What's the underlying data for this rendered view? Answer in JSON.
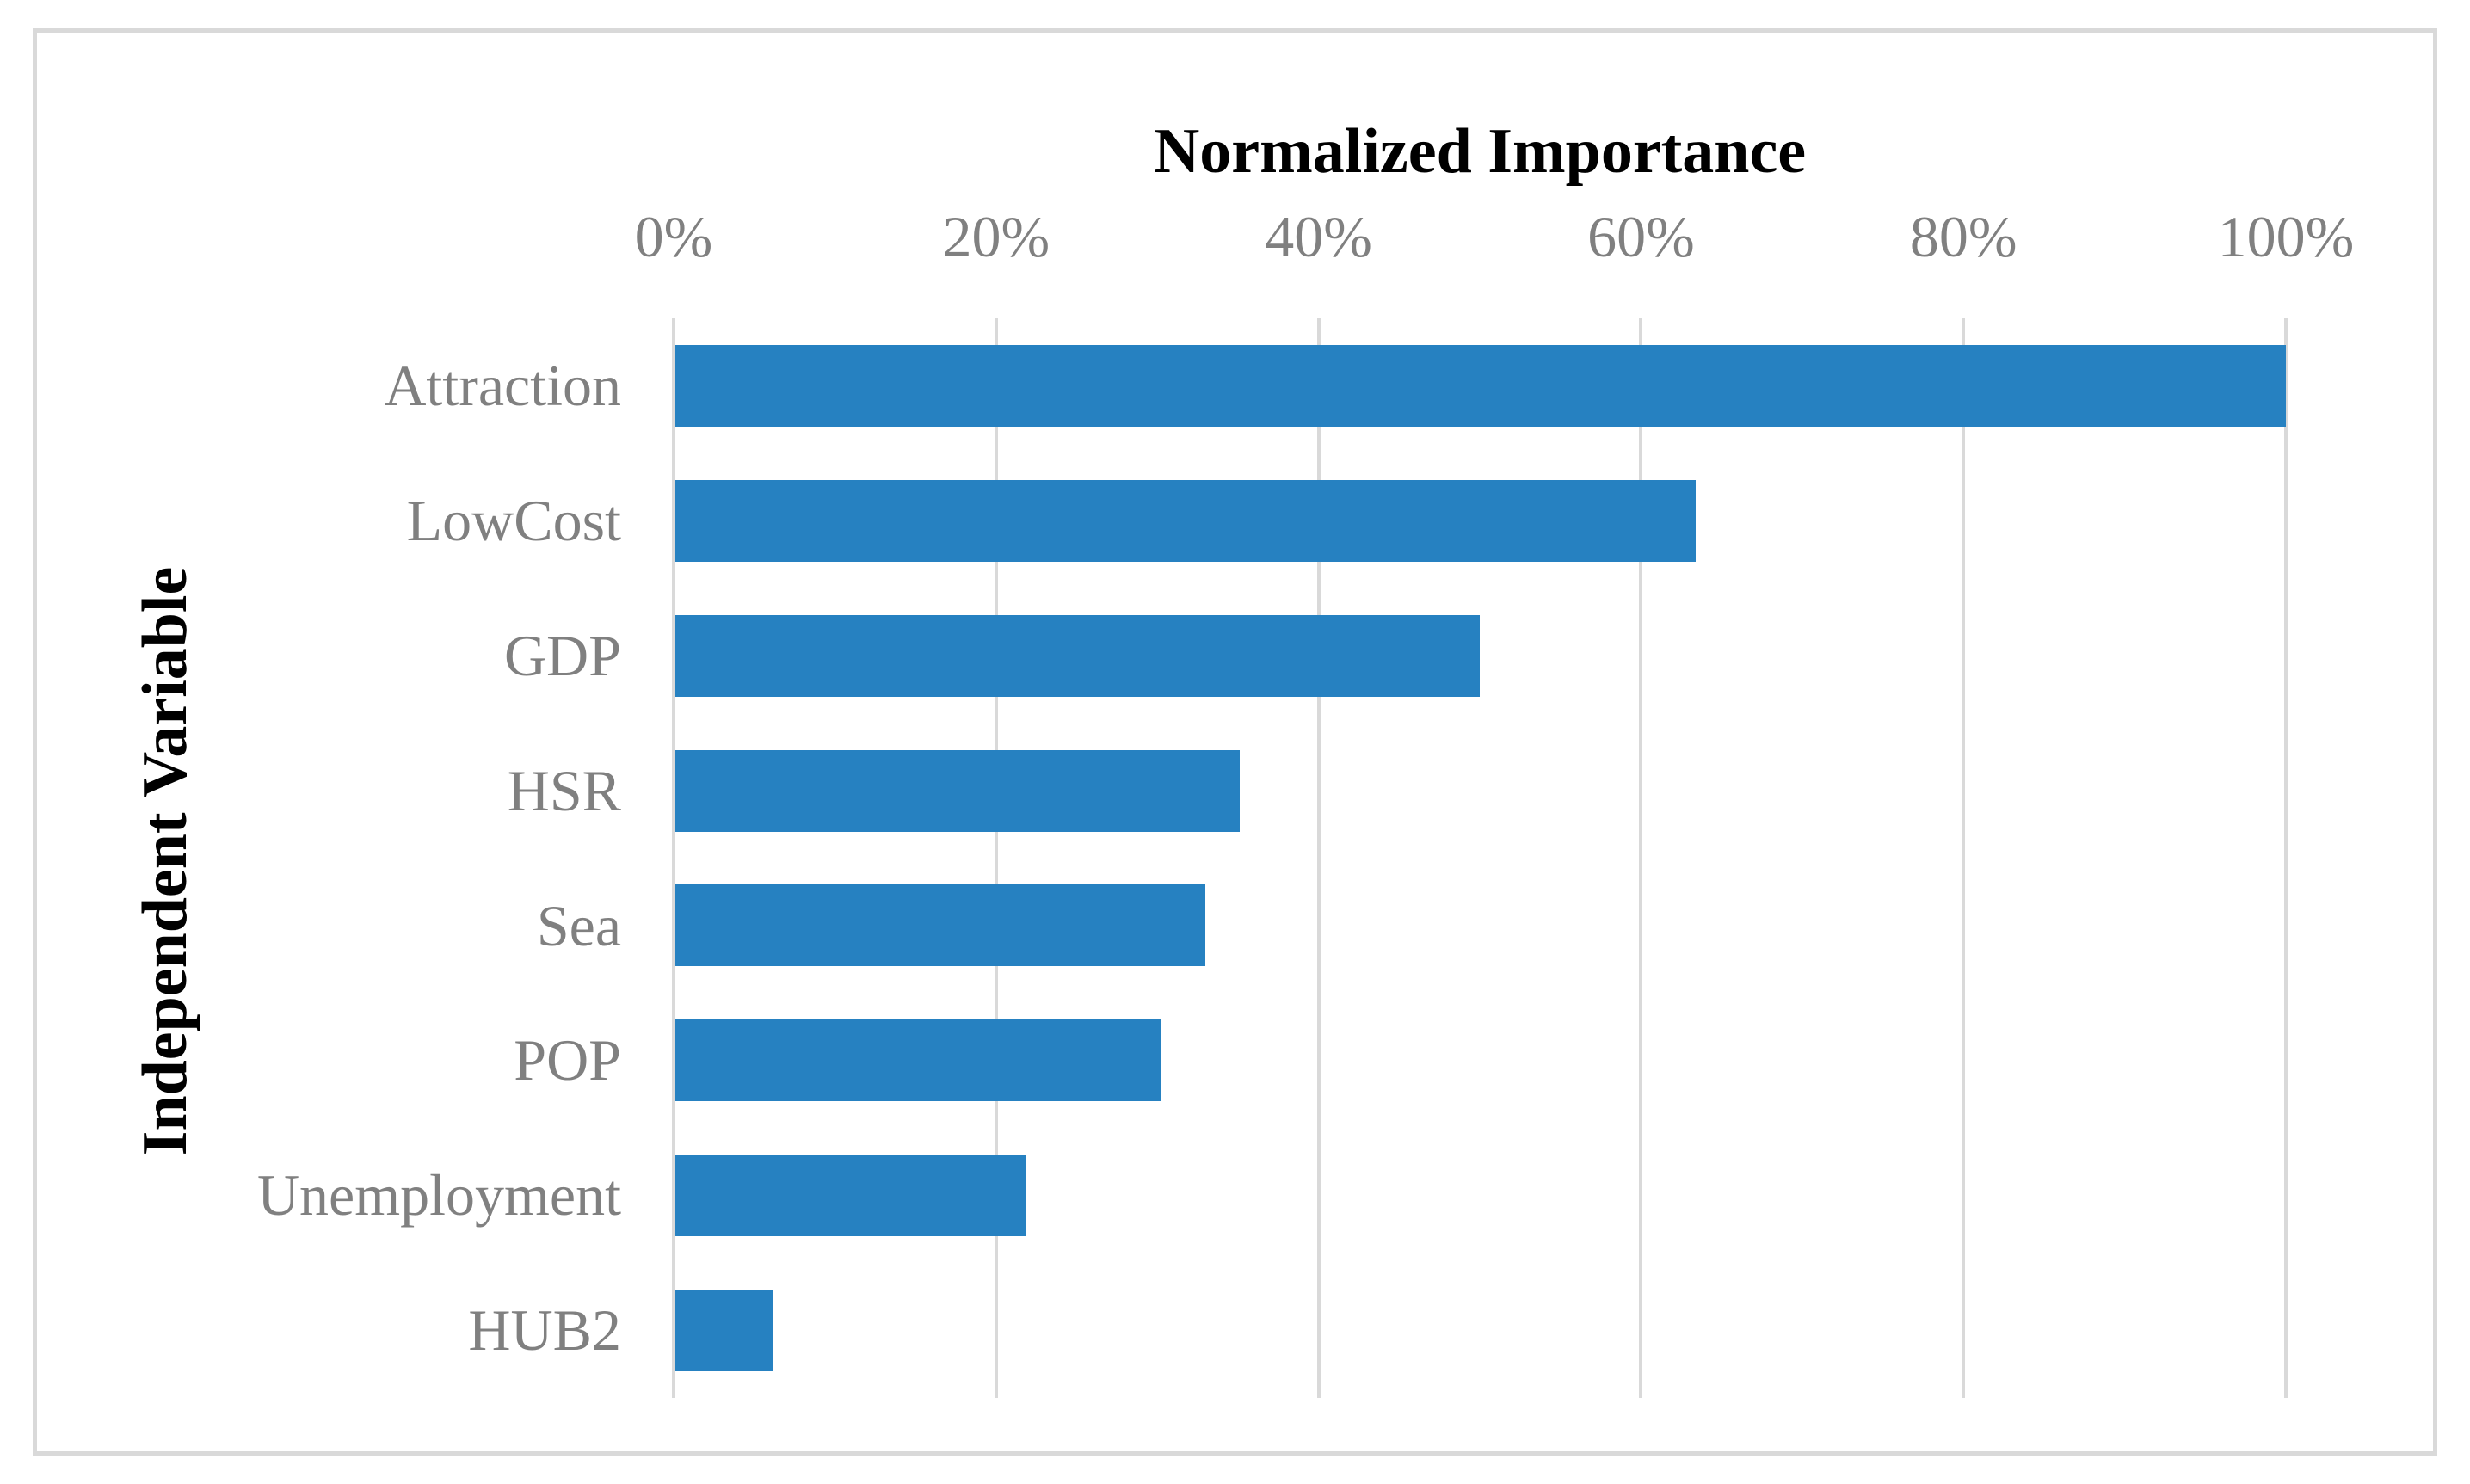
{
  "figure": {
    "title": "Normalized Importance",
    "y_axis_title": "Independent Variable"
  },
  "chart_data": {
    "type": "bar",
    "orientation": "horizontal",
    "title": "Normalized Importance",
    "xlabel": "Normalized Importance",
    "ylabel": "Independent Variable",
    "categories": [
      "Attraction",
      "LowCost",
      "GDP",
      "HSR",
      "Sea",
      "POP",
      "Unemployment",
      "HUB2"
    ],
    "values": [
      100,
      63.4,
      50,
      35.1,
      33,
      30.2,
      21.9,
      6.2
    ],
    "unit": "%",
    "xlim": [
      0,
      100
    ],
    "x_tick_labels": [
      "0%",
      "20%",
      "40%",
      "60%",
      "80%",
      "100%"
    ],
    "x_tick_values": [
      0,
      20,
      40,
      60,
      80,
      100
    ],
    "grid": "vertical-only",
    "legend": "none",
    "bar_order": "descending-top-to-bottom",
    "colors": {
      "bar": "#2681C1",
      "gridline": "#D9D9D9",
      "tick_label": "#808080",
      "category_label": "#808080",
      "title": "#000000",
      "axis_title": "#000000",
      "figure_border": "#D9D9D9",
      "background": "#FFFFFF"
    }
  }
}
